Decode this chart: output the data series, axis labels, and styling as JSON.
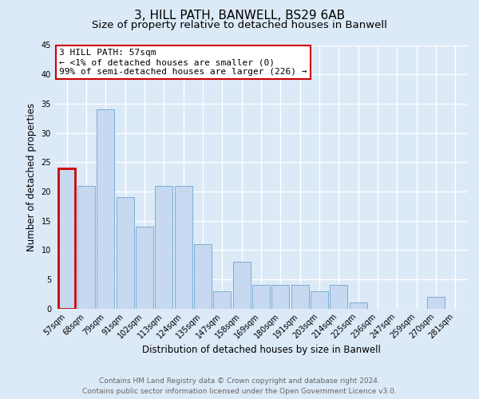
{
  "title": "3, HILL PATH, BANWELL, BS29 6AB",
  "subtitle": "Size of property relative to detached houses in Banwell",
  "xlabel": "Distribution of detached houses by size in Banwell",
  "ylabel": "Number of detached properties",
  "bar_labels": [
    "57sqm",
    "68sqm",
    "79sqm",
    "91sqm",
    "102sqm",
    "113sqm",
    "124sqm",
    "135sqm",
    "147sqm",
    "158sqm",
    "169sqm",
    "180sqm",
    "191sqm",
    "203sqm",
    "214sqm",
    "225sqm",
    "236sqm",
    "247sqm",
    "259sqm",
    "270sqm",
    "281sqm"
  ],
  "bar_values": [
    24,
    21,
    34,
    19,
    14,
    21,
    21,
    11,
    3,
    8,
    4,
    4,
    4,
    3,
    4,
    1,
    0,
    0,
    0,
    2,
    0
  ],
  "bar_color": "#c6d9f0",
  "bar_edge_color": "#7bafd4",
  "highlight_bar_index": 0,
  "highlight_edge_color": "#cc0000",
  "annotation_line1": "3 HILL PATH: 57sqm",
  "annotation_line2": "← <1% of detached houses are smaller (0)",
  "annotation_line3": "99% of semi-detached houses are larger (226) →",
  "annotation_box_edge_color": "#cc0000",
  "annotation_box_face_color": "#ffffff",
  "ylim": [
    0,
    45
  ],
  "yticks": [
    0,
    5,
    10,
    15,
    20,
    25,
    30,
    35,
    40,
    45
  ],
  "footer_line1": "Contains HM Land Registry data © Crown copyright and database right 2024.",
  "footer_line2": "Contains public sector information licensed under the Open Government Licence v3.0.",
  "bg_color": "#dce9f7",
  "plot_bg_color": "#dce9f7",
  "grid_color": "#ffffff",
  "title_fontsize": 11,
  "subtitle_fontsize": 9.5,
  "axis_label_fontsize": 8.5,
  "tick_fontsize": 7,
  "annotation_fontsize": 8,
  "footer_fontsize": 6.5
}
